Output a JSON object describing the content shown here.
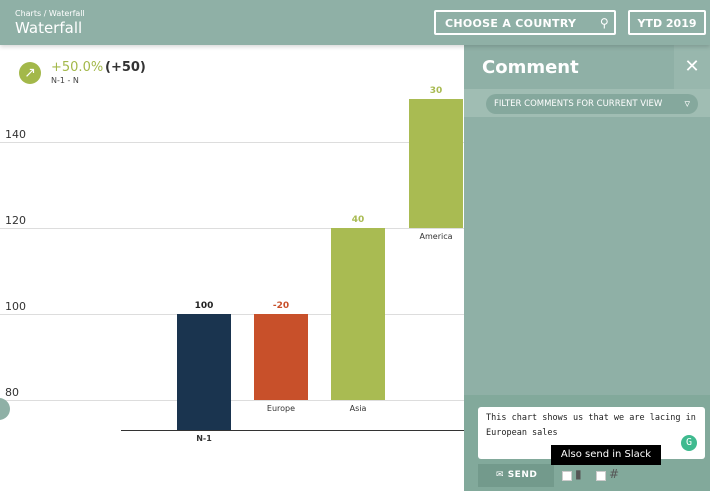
{
  "header": {
    "breadcrumb": "Charts / Waterfall",
    "title": "Waterfall",
    "country_label": "CHOOSE A COUNTRY",
    "country_icon": "search-icon",
    "period_label": "YTD 2019"
  },
  "kpi": {
    "icon": "arrow-up-right-icon",
    "percent": "+50.0%",
    "absolute": "(+50)",
    "subtitle": "N-1 - N"
  },
  "chart_data": {
    "type": "waterfall",
    "categories": [
      "N-1",
      "Europe",
      "Asia",
      "America"
    ],
    "values": [
      100,
      -20,
      40,
      30
    ],
    "value_labels": [
      "100",
      "-20",
      "40",
      "30"
    ],
    "yticks": [
      80,
      100,
      120,
      140
    ],
    "ylim": [
      73,
      156
    ],
    "grid": true,
    "colors": {
      "total": "#1a344f",
      "negative": "#c8502a",
      "positive": "#a9bb52"
    }
  },
  "panel": {
    "title": "Comment",
    "close_icon": "close-icon",
    "filter_label": "FILTER COMMENTS FOR CURRENT VIEW",
    "filter_icon": "filter-icon",
    "comment_text": "This chart shows us that we are lacing in European sales",
    "send_label": "SEND",
    "tooltip": "Also send in Slack"
  }
}
